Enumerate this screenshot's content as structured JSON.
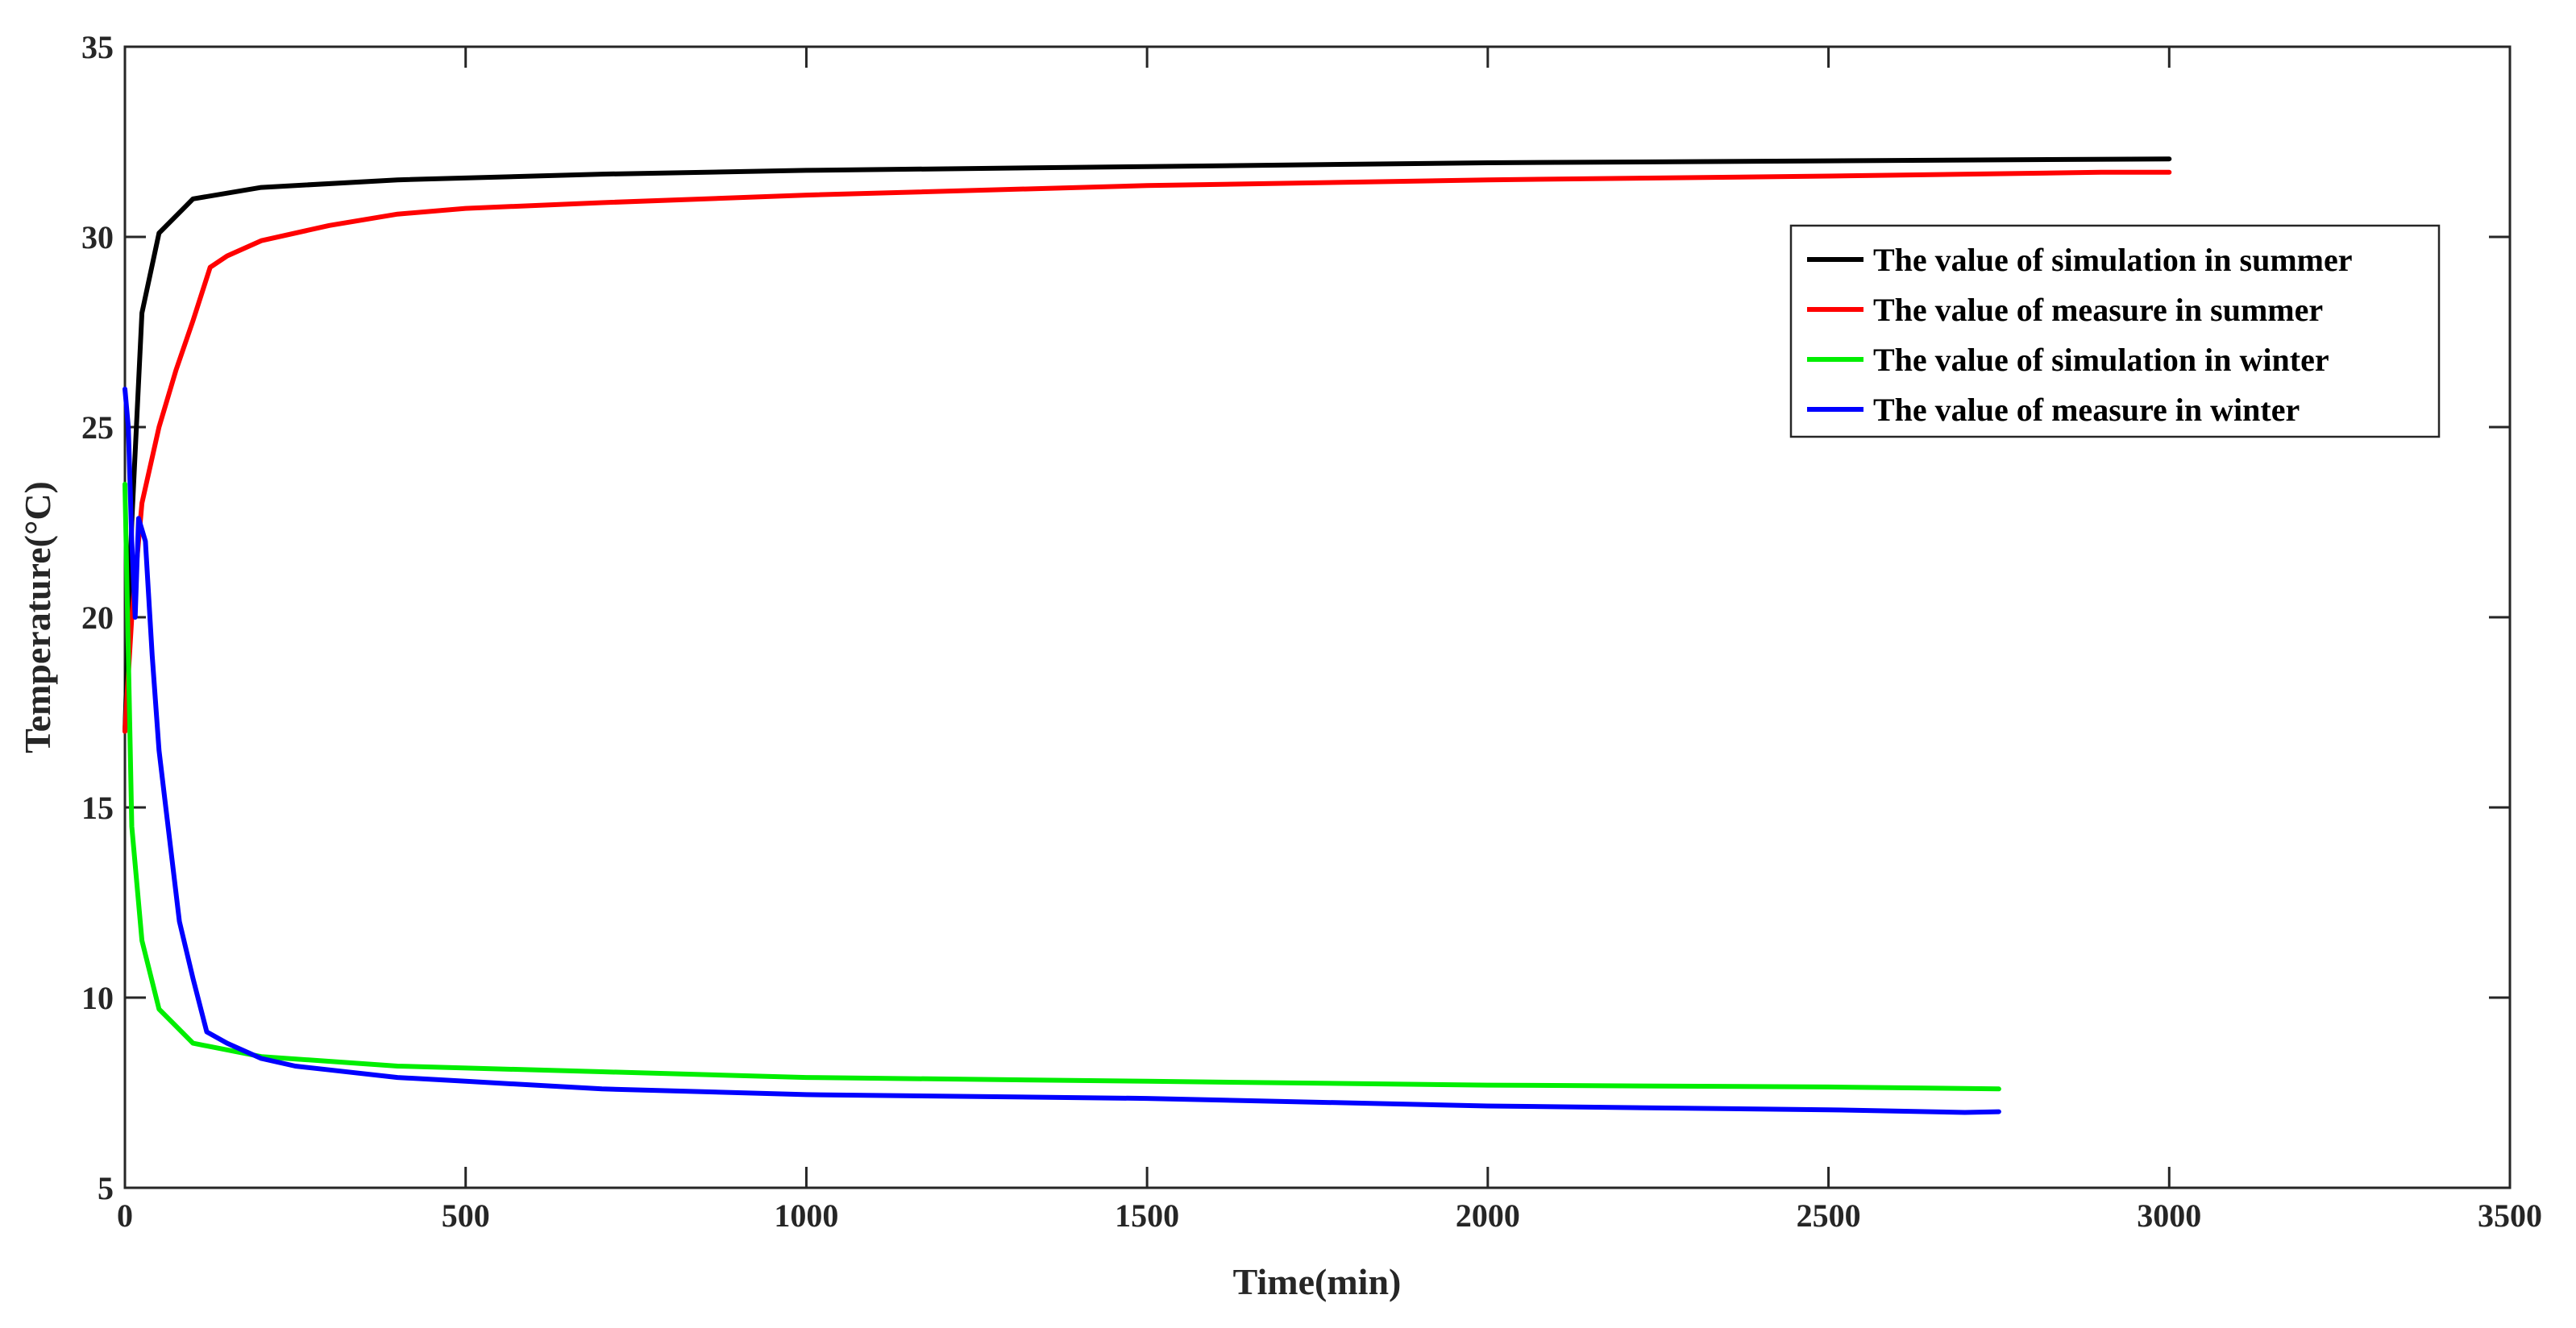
{
  "chart_data": {
    "type": "line",
    "title": "",
    "xlabel": "Time(min)",
    "ylabel": "Temperature(°C)",
    "xlim": [
      0,
      3500
    ],
    "ylim": [
      5,
      35
    ],
    "x_ticks": [
      0,
      500,
      1000,
      1500,
      2000,
      2500,
      3000,
      3500
    ],
    "y_ticks": [
      5,
      10,
      15,
      20,
      25,
      30,
      35
    ],
    "x_tick_labels": [
      "0",
      "500",
      "1000",
      "1500",
      "2000",
      "2500",
      "3000",
      "3500"
    ],
    "y_tick_labels": [
      "5",
      "10",
      "15",
      "20",
      "25",
      "30",
      "35"
    ],
    "grid": false,
    "legend_position": "top-right",
    "series": [
      {
        "name": "The value of simulation in summer",
        "color": "#000000",
        "x": [
          0,
          10,
          25,
          50,
          100,
          200,
          400,
          700,
          1000,
          1500,
          2000,
          2500,
          3000
        ],
        "y": [
          17.0,
          22.5,
          28.0,
          30.1,
          31.0,
          31.3,
          31.5,
          31.65,
          31.75,
          31.85,
          31.95,
          32.0,
          32.05
        ]
      },
      {
        "name": "The value of measure in summer",
        "color": "#ff0000",
        "x": [
          0,
          10,
          25,
          50,
          75,
          100,
          125,
          150,
          200,
          300,
          400,
          500,
          700,
          1000,
          1500,
          2000,
          2500,
          2900,
          3000
        ],
        "y": [
          17.0,
          20.0,
          23.0,
          25.0,
          26.5,
          27.8,
          29.2,
          29.5,
          29.9,
          30.3,
          30.6,
          30.75,
          30.9,
          31.1,
          31.35,
          31.5,
          31.6,
          31.7,
          31.7
        ]
      },
      {
        "name": "The value of simulation in winter",
        "color": "#00ee00",
        "x": [
          0,
          10,
          25,
          50,
          100,
          200,
          400,
          700,
          1000,
          1500,
          2000,
          2500,
          2750
        ],
        "y": [
          23.5,
          14.5,
          11.5,
          9.7,
          8.8,
          8.45,
          8.2,
          8.05,
          7.9,
          7.8,
          7.7,
          7.65,
          7.6
        ]
      },
      {
        "name": "The value of measure in winter",
        "color": "#0000ff",
        "x": [
          0,
          5,
          10,
          15,
          20,
          30,
          40,
          50,
          60,
          80,
          100,
          120,
          150,
          200,
          250,
          300,
          400,
          500,
          700,
          1000,
          1500,
          2000,
          2500,
          2700,
          2750
        ],
        "y": [
          26.0,
          25.0,
          22.0,
          20.0,
          22.6,
          22.0,
          19.0,
          16.5,
          15.0,
          12.0,
          10.5,
          9.1,
          8.8,
          8.4,
          8.2,
          8.1,
          7.9,
          7.8,
          7.6,
          7.45,
          7.35,
          7.15,
          7.05,
          6.98,
          7.0
        ]
      }
    ]
  }
}
